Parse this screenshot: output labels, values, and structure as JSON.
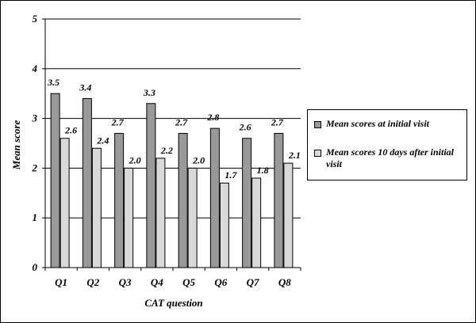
{
  "chart_data": {
    "type": "bar",
    "title": "",
    "xlabel": "CAT question",
    "ylabel": "Mean score",
    "categories": [
      "Q1",
      "Q2",
      "Q3",
      "Q4",
      "Q5",
      "Q6",
      "Q7",
      "Q8"
    ],
    "series": [
      {
        "name": "Mean scores at initial visit",
        "values": [
          3.5,
          3.4,
          2.7,
          3.3,
          2.7,
          2.8,
          2.6,
          2.7
        ],
        "labels": [
          "3.5",
          "3.4",
          "2.7",
          "3.3",
          "2.7",
          "2.8",
          "2.6",
          "2.7"
        ],
        "color": "#999999"
      },
      {
        "name": "Mean scores 10 days after initial visit",
        "values": [
          2.6,
          2.4,
          2.0,
          2.2,
          2.0,
          1.7,
          1.8,
          2.1
        ],
        "labels": [
          "2.6",
          "2.4",
          "2.0",
          "2.2",
          "2.0",
          "1.7",
          "1.8",
          "2.1"
        ],
        "color": "#d9d9d9"
      }
    ],
    "ylim": [
      0,
      5
    ],
    "yticks": [
      "0",
      "1",
      "2",
      "3",
      "4",
      "5"
    ],
    "grid": true,
    "legend_position": "right"
  }
}
